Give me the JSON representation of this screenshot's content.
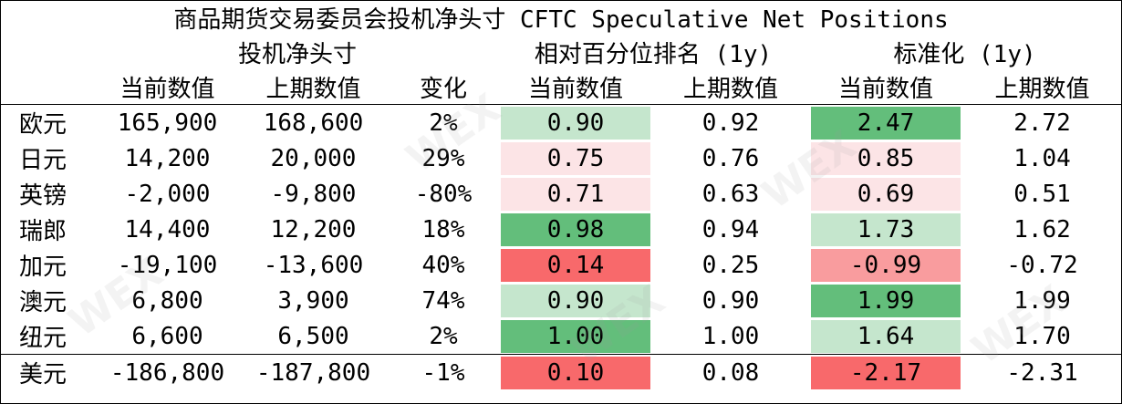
{
  "title": "商品期货交易委员会投机净头寸 CFTC Speculative Net Positions",
  "groups": {
    "net": "投机净头寸",
    "pct": "相对百分位排名 (1y)",
    "std": "标准化 (1y)"
  },
  "subheaders": [
    "当前数值",
    "上期数值",
    "变化",
    "当前数值",
    "上期数值",
    "当前数值",
    "上期数值"
  ],
  "colors": {
    "dark_green": "#63be7b",
    "light_green": "#c5e6cd",
    "light_pink": "#fce4e6",
    "red": "#f8696b",
    "mid_red": "#f99c9e"
  },
  "rows": [
    {
      "name": "欧元",
      "cur": "165,900",
      "prev": "168,600",
      "chg": "2%",
      "pct_cur": "0.90",
      "pct_prev": "0.92",
      "std_cur": "2.47",
      "std_prev": "2.72",
      "pct_color": "#c5e6cd",
      "std_color": "#63be7b"
    },
    {
      "name": "日元",
      "cur": "14,200",
      "prev": "20,000",
      "chg": "29%",
      "pct_cur": "0.75",
      "pct_prev": "0.76",
      "std_cur": "0.85",
      "std_prev": "1.04",
      "pct_color": "#fce4e6",
      "std_color": "#fce4e6"
    },
    {
      "name": "英镑",
      "cur": "-2,000",
      "prev": "-9,800",
      "chg": "-80%",
      "pct_cur": "0.71",
      "pct_prev": "0.63",
      "std_cur": "0.69",
      "std_prev": "0.51",
      "pct_color": "#fce4e6",
      "std_color": "#fce4e6"
    },
    {
      "name": "瑞郎",
      "cur": "14,400",
      "prev": "12,200",
      "chg": "18%",
      "pct_cur": "0.98",
      "pct_prev": "0.94",
      "std_cur": "1.73",
      "std_prev": "1.62",
      "pct_color": "#63be7b",
      "std_color": "#c5e6cd"
    },
    {
      "name": "加元",
      "cur": "-19,100",
      "prev": "-13,600",
      "chg": "40%",
      "pct_cur": "0.14",
      "pct_prev": "0.25",
      "std_cur": "-0.99",
      "std_prev": "-0.72",
      "pct_color": "#f8696b",
      "std_color": "#f99c9e"
    },
    {
      "name": "澳元",
      "cur": "6,800",
      "prev": "3,900",
      "chg": "74%",
      "pct_cur": "0.90",
      "pct_prev": "0.90",
      "std_cur": "1.99",
      "std_prev": "1.99",
      "pct_color": "#c5e6cd",
      "std_color": "#63be7b"
    },
    {
      "name": "纽元",
      "cur": "6,600",
      "prev": "6,500",
      "chg": "2%",
      "pct_cur": "1.00",
      "pct_prev": "1.00",
      "std_cur": "1.64",
      "std_prev": "1.70",
      "pct_color": "#63be7b",
      "std_color": "#c5e6cd"
    },
    {
      "name": "美元",
      "cur": "-186,800",
      "prev": "-187,800",
      "chg": "-1%",
      "pct_cur": "0.10",
      "pct_prev": "0.08",
      "std_cur": "-2.17",
      "std_prev": "-2.31",
      "pct_color": "#f8696b",
      "std_color": "#f8696b"
    }
  ]
}
